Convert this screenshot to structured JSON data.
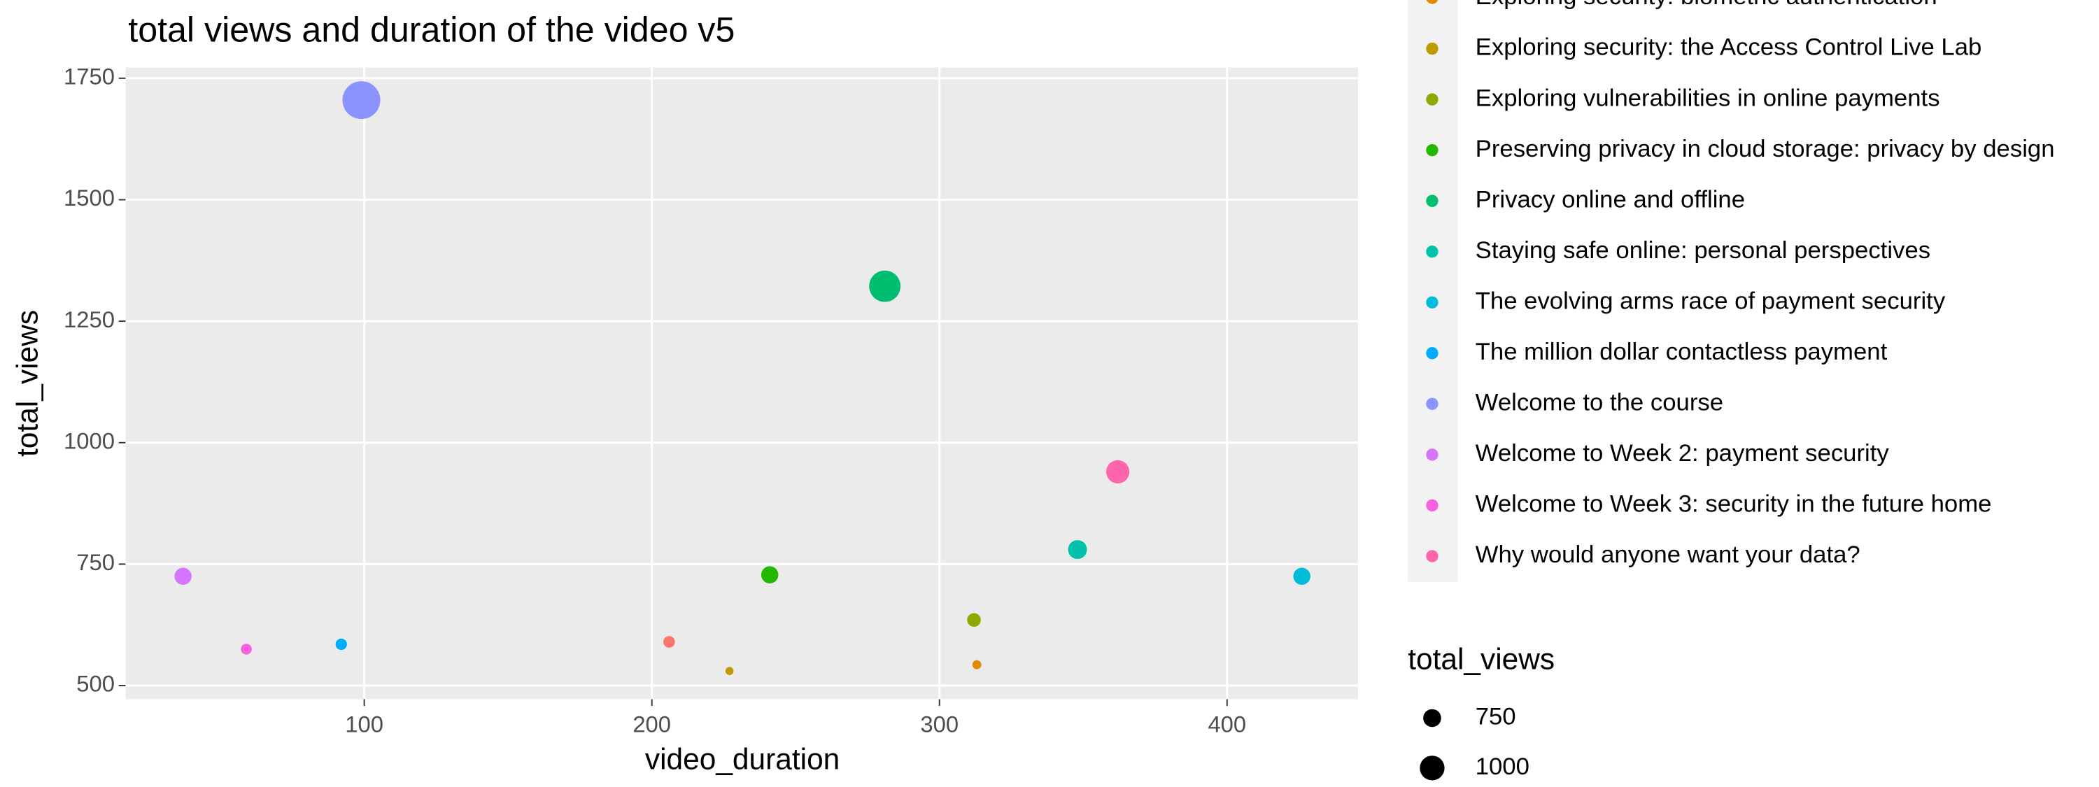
{
  "chart_data": {
    "type": "scatter",
    "title": "total views and duration of the video v5",
    "x_label": "video_duration",
    "y_label": "total_views",
    "xlim": [
      17,
      445.5
    ],
    "ylim": [
      472,
      1772
    ],
    "xticks": [
      100,
      200,
      300,
      400
    ],
    "yticks": [
      500,
      750,
      1000,
      1250,
      1500,
      1750
    ],
    "grid": true,
    "series": [
      {
        "name": null,
        "color": "#F8766D",
        "x": 206,
        "y": 590
      },
      {
        "name": "Exploring security: biometric authentication",
        "color": "#E18A00",
        "x": 313,
        "y": 543
      },
      {
        "name": "Exploring security: the Access Control Live Lab",
        "color": "#BE9C00",
        "x": 227,
        "y": 530
      },
      {
        "name": "Exploring vulnerabilities in online payments",
        "color": "#8CAB00",
        "x": 312,
        "y": 635
      },
      {
        "name": "Preserving privacy in cloud storage: privacy by design",
        "color": "#24B700",
        "x": 241,
        "y": 728
      },
      {
        "name": "Privacy online and offline",
        "color": "#00BE70",
        "x": 281,
        "y": 1322
      },
      {
        "name": "Staying safe online: personal perspectives",
        "color": "#00C1AB",
        "x": 348,
        "y": 780
      },
      {
        "name": "The evolving arms race of payment security",
        "color": "#00BBDA",
        "x": 426,
        "y": 725
      },
      {
        "name": "The million dollar contactless payment",
        "color": "#00ACFC",
        "x": 92,
        "y": 585
      },
      {
        "name": "Welcome to the course",
        "color": "#8B93FF",
        "x": 99,
        "y": 1705
      },
      {
        "name": "Welcome to Week 2: payment security",
        "color": "#D575FE",
        "x": 37,
        "y": 725
      },
      {
        "name": "Welcome to Week 3: security in the future home",
        "color": "#F962DD",
        "x": 59,
        "y": 575
      },
      {
        "name": "Why would anyone want your data?",
        "color": "#FF65AC",
        "x": 362,
        "y": 940
      }
    ],
    "size_legend": {
      "title": "total_views",
      "values": [
        750,
        1000
      ]
    }
  }
}
